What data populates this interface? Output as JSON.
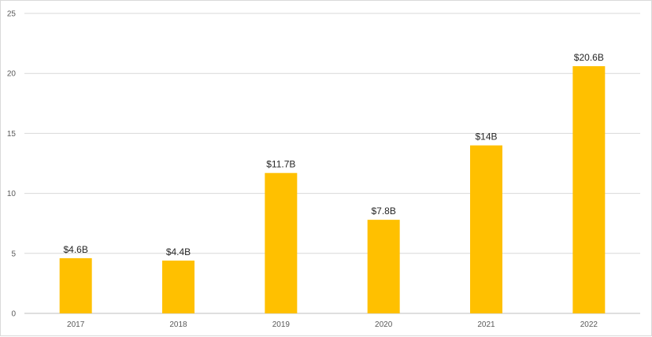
{
  "chart_data": {
    "type": "bar",
    "categories": [
      "2017",
      "2018",
      "2019",
      "2020",
      "2021",
      "2022"
    ],
    "values": [
      4.6,
      4.4,
      11.7,
      7.8,
      14,
      20.6
    ],
    "data_labels": [
      "$4.6B",
      "$4.4B",
      "$11.7B",
      "$7.8B",
      "$14B",
      "$20.6B"
    ],
    "y_ticks": [
      "0",
      "5",
      "10",
      "15",
      "20",
      "25"
    ],
    "ylim": [
      0,
      25
    ],
    "title": "",
    "xlabel": "",
    "ylabel": "",
    "grid": true,
    "legend": "none",
    "colors": {
      "bar": "#FFC000",
      "grid": "#D9D9D9",
      "axis": "#BFBFBF"
    }
  }
}
